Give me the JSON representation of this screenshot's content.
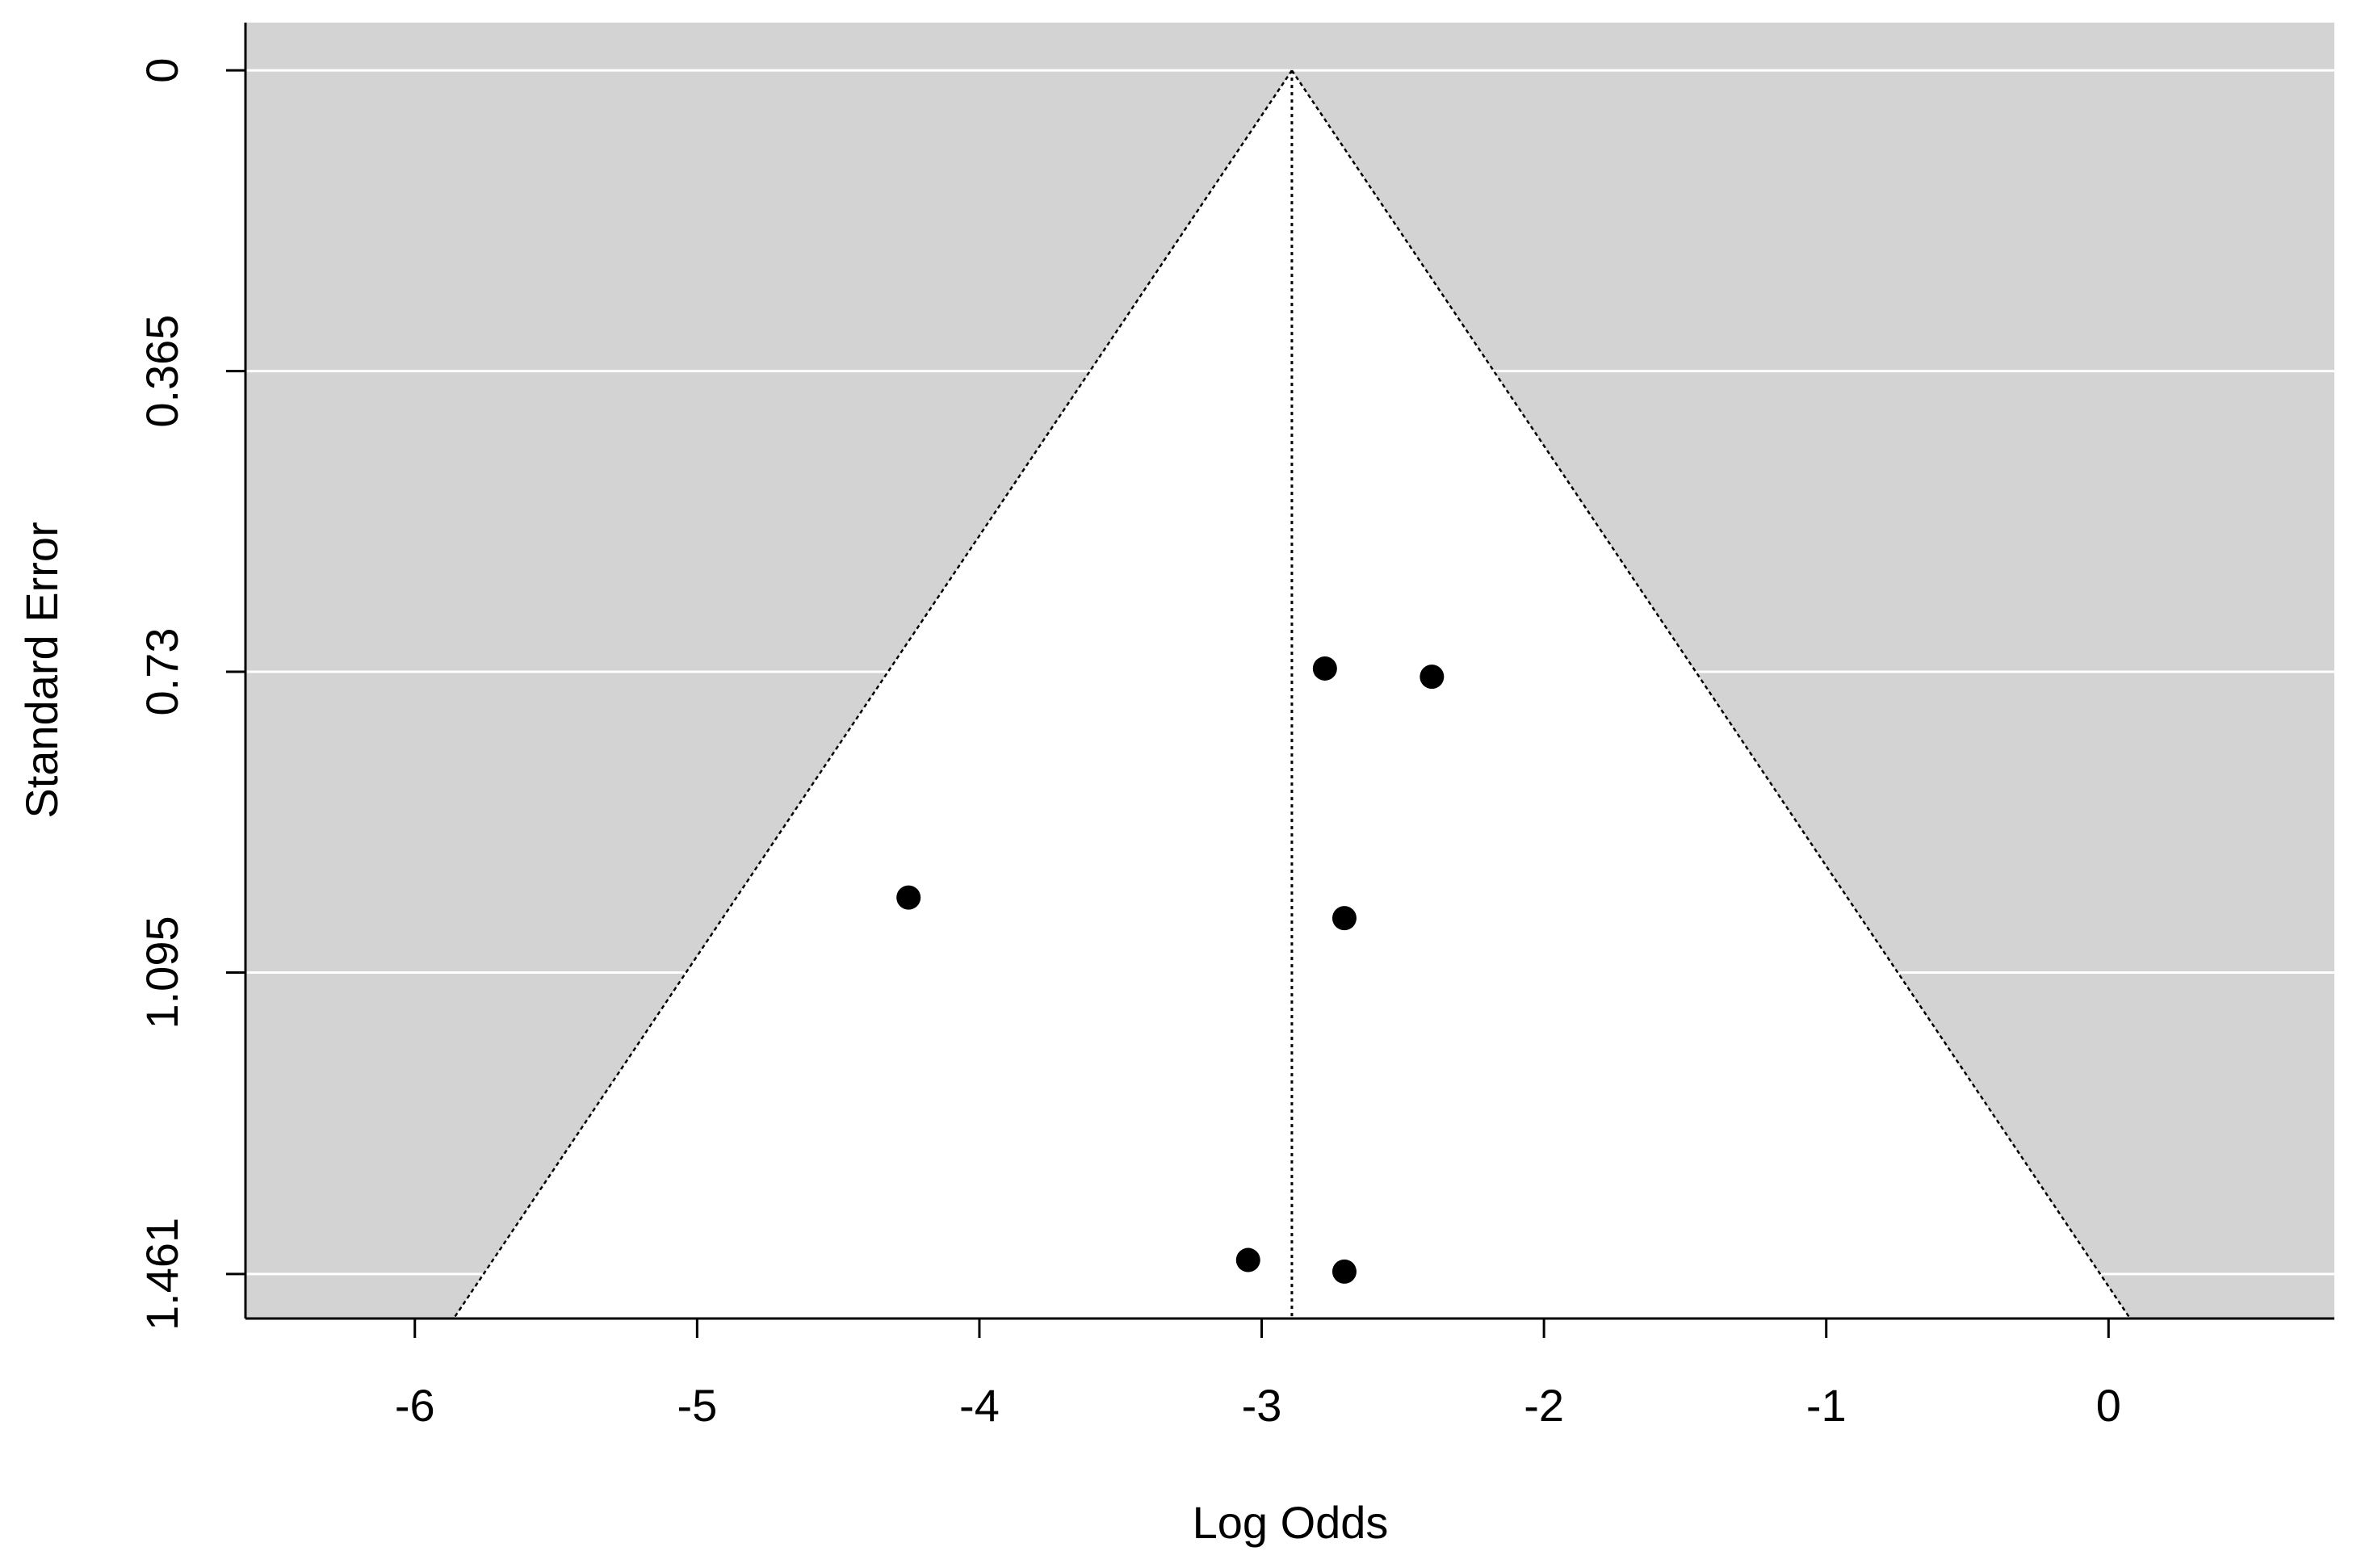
{
  "chart_data": {
    "type": "funnel",
    "x_label": "Log Odds",
    "y_label": "Standard Error",
    "xlim": [
      -6.6,
      0.8
    ],
    "xticks": [
      -6,
      -5,
      -4,
      -3,
      -2,
      -1,
      0
    ],
    "ylim": [
      1.515,
      -0.058
    ],
    "yticks": [
      0,
      0.365,
      0.73,
      1.095,
      1.461
    ],
    "estimate": -2.893,
    "funnel_multiplier": 1.96,
    "background": "#d3d3d3",
    "funnel_color": "#ffffff",
    "point_color": "#000000",
    "grid": true,
    "x": [
      -2.776,
      -2.397,
      -4.251,
      -2.707,
      -3.048,
      -2.707
    ],
    "values": [
      0.726,
      0.736,
      1.004,
      1.029,
      1.444,
      1.458
    ]
  }
}
